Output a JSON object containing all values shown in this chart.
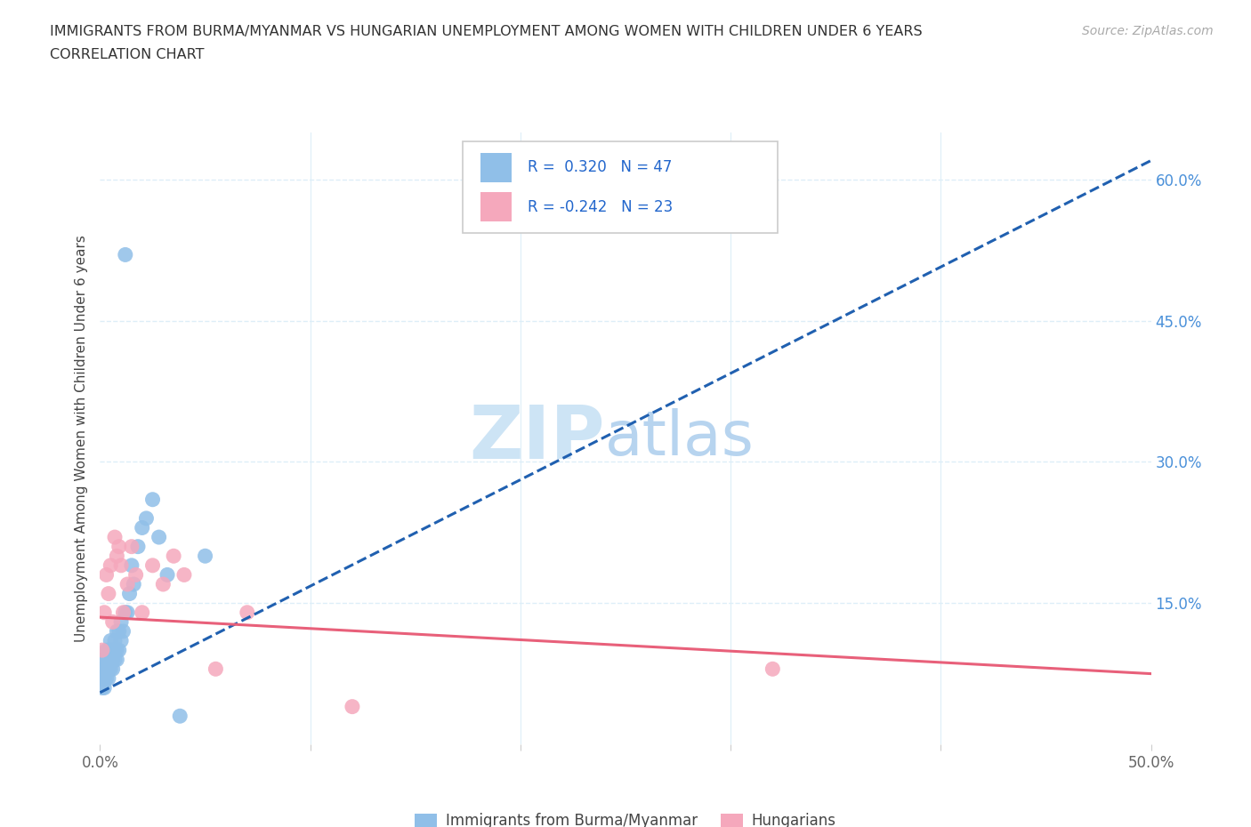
{
  "title_line1": "IMMIGRANTS FROM BURMA/MYANMAR VS HUNGARIAN UNEMPLOYMENT AMONG WOMEN WITH CHILDREN UNDER 6 YEARS",
  "title_line2": "CORRELATION CHART",
  "source": "Source: ZipAtlas.com",
  "ylabel": "Unemployment Among Women with Children Under 6 years",
  "xlim": [
    0.0,
    0.5
  ],
  "ylim": [
    0.0,
    0.65
  ],
  "r_blue": 0.32,
  "n_blue": 47,
  "r_pink": -0.242,
  "n_pink": 23,
  "blue_color": "#90bfe8",
  "pink_color": "#f5a8bc",
  "blue_line_color": "#2060b0",
  "pink_line_color": "#e8607a",
  "blue_line_dashed": true,
  "pink_line_dashed": false,
  "grid_color": "#ddeef8",
  "blue_scatter_x": [
    0.001,
    0.001,
    0.001,
    0.002,
    0.002,
    0.002,
    0.002,
    0.003,
    0.003,
    0.003,
    0.003,
    0.004,
    0.004,
    0.004,
    0.004,
    0.005,
    0.005,
    0.005,
    0.005,
    0.006,
    0.006,
    0.006,
    0.007,
    0.007,
    0.007,
    0.008,
    0.008,
    0.008,
    0.009,
    0.009,
    0.01,
    0.01,
    0.011,
    0.012,
    0.013,
    0.014,
    0.015,
    0.016,
    0.018,
    0.02,
    0.022,
    0.025,
    0.028,
    0.032,
    0.038,
    0.05,
    0.012
  ],
  "blue_scatter_y": [
    0.06,
    0.07,
    0.08,
    0.06,
    0.07,
    0.08,
    0.09,
    0.07,
    0.08,
    0.09,
    0.1,
    0.07,
    0.08,
    0.09,
    0.1,
    0.08,
    0.09,
    0.1,
    0.11,
    0.08,
    0.09,
    0.1,
    0.09,
    0.1,
    0.11,
    0.09,
    0.1,
    0.12,
    0.1,
    0.12,
    0.11,
    0.13,
    0.12,
    0.14,
    0.14,
    0.16,
    0.19,
    0.17,
    0.21,
    0.23,
    0.24,
    0.26,
    0.22,
    0.18,
    0.03,
    0.2,
    0.52
  ],
  "pink_scatter_x": [
    0.001,
    0.002,
    0.003,
    0.004,
    0.005,
    0.006,
    0.007,
    0.008,
    0.009,
    0.01,
    0.011,
    0.013,
    0.015,
    0.017,
    0.02,
    0.025,
    0.03,
    0.035,
    0.04,
    0.055,
    0.07,
    0.32,
    0.12
  ],
  "pink_scatter_y": [
    0.1,
    0.14,
    0.18,
    0.16,
    0.19,
    0.13,
    0.22,
    0.2,
    0.21,
    0.19,
    0.14,
    0.17,
    0.21,
    0.18,
    0.14,
    0.19,
    0.17,
    0.2,
    0.18,
    0.08,
    0.14,
    0.08,
    0.04
  ],
  "blue_trendline_x": [
    0.0,
    0.5
  ],
  "blue_trendline_y": [
    0.055,
    0.62
  ],
  "pink_trendline_x": [
    0.0,
    0.5
  ],
  "pink_trendline_y": [
    0.135,
    0.075
  ]
}
